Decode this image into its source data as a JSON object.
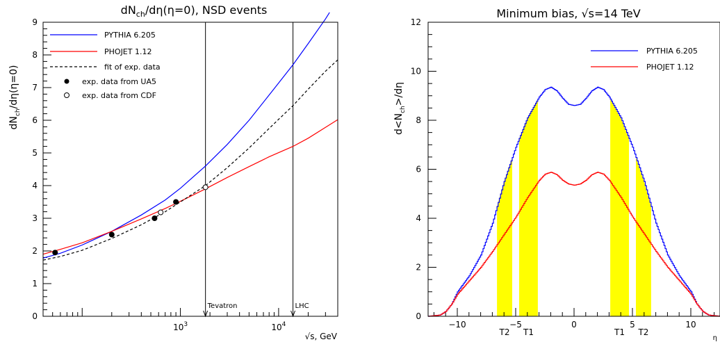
{
  "chart_data": [
    {
      "type": "line",
      "title": "dN_ch/dη(η=0), NSD events",
      "title_parts": {
        "d1": "dN",
        "sub1": "ch",
        "rest": "/dη(η=0), NSD events"
      },
      "ylabel_parts": {
        "d1": "dN",
        "sub1": "ch",
        "rest": "/dη(η=0)"
      },
      "xlabel": "√s, GeV",
      "xscale": "log",
      "xlim": [
        40,
        40000
      ],
      "ylim": [
        0,
        9
      ],
      "yticks": [
        0,
        1,
        2,
        3,
        4,
        5,
        6,
        7,
        8,
        9
      ],
      "xticks": [
        {
          "base": "10",
          "exp": "3",
          "value": 1000
        },
        {
          "base": "10",
          "exp": "4",
          "value": 10000
        }
      ],
      "legend_position": "top-left",
      "series": [
        {
          "name": "PYTHIA 6.205",
          "color": "#0000ff",
          "style": "solid",
          "x": [
            40,
            60,
            100,
            200,
            400,
            700,
            1000,
            1800,
            3000,
            5000,
            8000,
            14000,
            20000,
            30000,
            33000
          ],
          "y": [
            1.78,
            1.93,
            2.18,
            2.6,
            3.1,
            3.56,
            3.92,
            4.6,
            5.26,
            6.0,
            6.77,
            7.7,
            8.35,
            9.1,
            9.3
          ]
        },
        {
          "name": "PHOJET 1.12",
          "color": "#ff0000",
          "style": "solid",
          "x": [
            40,
            60,
            100,
            200,
            400,
            700,
            1000,
            1800,
            3000,
            5000,
            8000,
            14000,
            20000,
            30000,
            40000
          ],
          "y": [
            1.9,
            2.05,
            2.25,
            2.6,
            2.98,
            3.3,
            3.52,
            3.9,
            4.25,
            4.58,
            4.88,
            5.2,
            5.45,
            5.78,
            6.02
          ]
        },
        {
          "name": "fit of exp. data",
          "color": "#000000",
          "style": "dashed",
          "x": [
            40,
            60,
            100,
            200,
            400,
            700,
            1000,
            1800,
            3000,
            5000,
            8000,
            14000,
            20000,
            30000,
            40000
          ],
          "y": [
            1.72,
            1.83,
            2.02,
            2.38,
            2.8,
            3.2,
            3.5,
            4.0,
            4.55,
            5.15,
            5.75,
            6.45,
            6.95,
            7.5,
            7.85
          ]
        }
      ],
      "points": [
        {
          "name": "exp. data from UA5",
          "marker": "filled",
          "x": [
            53,
            200,
            546,
            900
          ],
          "y": [
            1.95,
            2.5,
            3.0,
            3.5
          ]
        },
        {
          "name": "exp. data from CDF",
          "marker": "open",
          "x": [
            630,
            1800
          ],
          "y": [
            3.18,
            3.95
          ]
        }
      ],
      "vlines": [
        {
          "x": 1800,
          "label": "Tevatron"
        },
        {
          "x": 14000,
          "label": "LHC"
        }
      ]
    },
    {
      "type": "line",
      "title": "Minimum bias, √s=14 TeV",
      "ylabel_parts": {
        "d1": "d<N",
        "sub1": "ch",
        "rest": ">/dη"
      },
      "xlabel": "η",
      "xlim": [
        -12.5,
        12.5
      ],
      "ylim": [
        0,
        12
      ],
      "xticks": [
        -10,
        -5,
        0,
        5,
        10
      ],
      "yticks": [
        0,
        2,
        4,
        6,
        8,
        10,
        12
      ],
      "legend_position": "top-right",
      "series": [
        {
          "name": "PYTHIA 6.205",
          "color": "#0000ff",
          "style": "step",
          "x": [
            -12.5,
            -11.5,
            -11,
            -10.5,
            -10,
            -9,
            -8,
            -7,
            -6,
            -5,
            -4,
            -3,
            -2.5,
            -2,
            -1.5,
            -1,
            -0.5,
            0,
            0.5,
            1,
            1.5,
            2,
            2.5,
            3,
            4,
            5,
            6,
            7,
            8,
            9,
            10,
            10.5,
            11,
            11.5,
            12.5
          ],
          "y": [
            0.0,
            0.05,
            0.2,
            0.5,
            1.0,
            1.65,
            2.5,
            3.8,
            5.5,
            6.9,
            8.1,
            8.95,
            9.25,
            9.35,
            9.2,
            8.9,
            8.65,
            8.6,
            8.65,
            8.9,
            9.2,
            9.35,
            9.25,
            8.95,
            8.1,
            6.9,
            5.5,
            3.8,
            2.5,
            1.65,
            1.0,
            0.5,
            0.2,
            0.05,
            0.0
          ]
        },
        {
          "name": "PHOJET 1.12",
          "color": "#ff0000",
          "style": "step",
          "x": [
            -12.5,
            -11.5,
            -11,
            -10.5,
            -10,
            -9,
            -8,
            -7,
            -6,
            -5,
            -4,
            -3,
            -2.5,
            -2,
            -1.5,
            -1,
            -0.5,
            0,
            0.5,
            1,
            1.5,
            2,
            2.5,
            3,
            4,
            5,
            6,
            7,
            8,
            9,
            10,
            10.5,
            11,
            11.5,
            12.5
          ],
          "y": [
            0.0,
            0.05,
            0.2,
            0.5,
            0.9,
            1.45,
            2.0,
            2.65,
            3.35,
            4.05,
            4.85,
            5.55,
            5.8,
            5.88,
            5.78,
            5.55,
            5.4,
            5.35,
            5.4,
            5.55,
            5.78,
            5.88,
            5.8,
            5.55,
            4.85,
            4.05,
            3.35,
            2.65,
            2.0,
            1.45,
            0.9,
            0.5,
            0.2,
            0.05,
            0.0
          ]
        }
      ],
      "shaded_regions": [
        {
          "label": "T2",
          "x": [
            -6.6,
            -5.3
          ],
          "color": "#ffff00"
        },
        {
          "label": "T1",
          "x": [
            -4.7,
            -3.1
          ],
          "color": "#ffff00"
        },
        {
          "label": "T1",
          "x": [
            3.1,
            4.7
          ],
          "color": "#ffff00"
        },
        {
          "label": "T2",
          "x": [
            5.3,
            6.6
          ],
          "color": "#ffff00"
        }
      ]
    }
  ]
}
